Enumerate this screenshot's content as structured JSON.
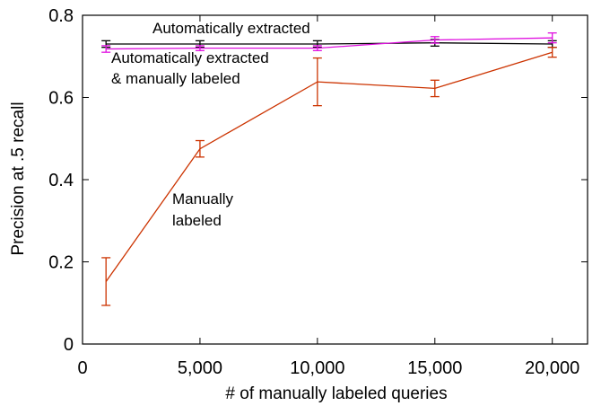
{
  "chart_data": {
    "type": "line",
    "xlabel": "# of manually labeled queries",
    "ylabel": "Precision at .5 recall",
    "xlim": [
      0,
      21500
    ],
    "ylim": [
      0,
      0.8
    ],
    "x_ticks": [
      0,
      5000,
      10000,
      15000,
      20000
    ],
    "x_tick_labels": [
      "0",
      "5,000",
      "10,000",
      "15,000",
      "20,000"
    ],
    "y_ticks": [
      0,
      0.2,
      0.4,
      0.6,
      0.8
    ],
    "y_tick_labels": [
      "0",
      "0.2",
      "0.4",
      "0.6",
      "0.8"
    ],
    "grid": false,
    "series": [
      {
        "key": "auto",
        "color": "#000000",
        "x": [
          1000,
          5000,
          10000,
          15000,
          20000
        ],
        "y": [
          0.73,
          0.73,
          0.73,
          0.733,
          0.73
        ],
        "err": [
          0.008,
          0.008,
          0.008,
          0.008,
          0.008
        ]
      },
      {
        "key": "combined",
        "color": "#e010e0",
        "x": [
          1000,
          5000,
          10000,
          15000,
          20000
        ],
        "y": [
          0.718,
          0.72,
          0.72,
          0.74,
          0.745
        ],
        "err": [
          0.008,
          0.006,
          0.006,
          0.008,
          0.012
        ]
      },
      {
        "key": "manual",
        "color": "#cc3300",
        "x": [
          1000,
          5000,
          10000,
          15000,
          20000
        ],
        "y": [
          0.152,
          0.475,
          0.638,
          0.622,
          0.71
        ],
        "err": [
          0.058,
          0.02,
          0.058,
          0.02,
          0.012
        ]
      }
    ],
    "annotations": {
      "auto": "Automatically extracted",
      "combined_line1": "Automatically extracted",
      "combined_line2": "& manually labeled",
      "manual_line1": "Manually",
      "manual_line2": "labeled"
    }
  }
}
